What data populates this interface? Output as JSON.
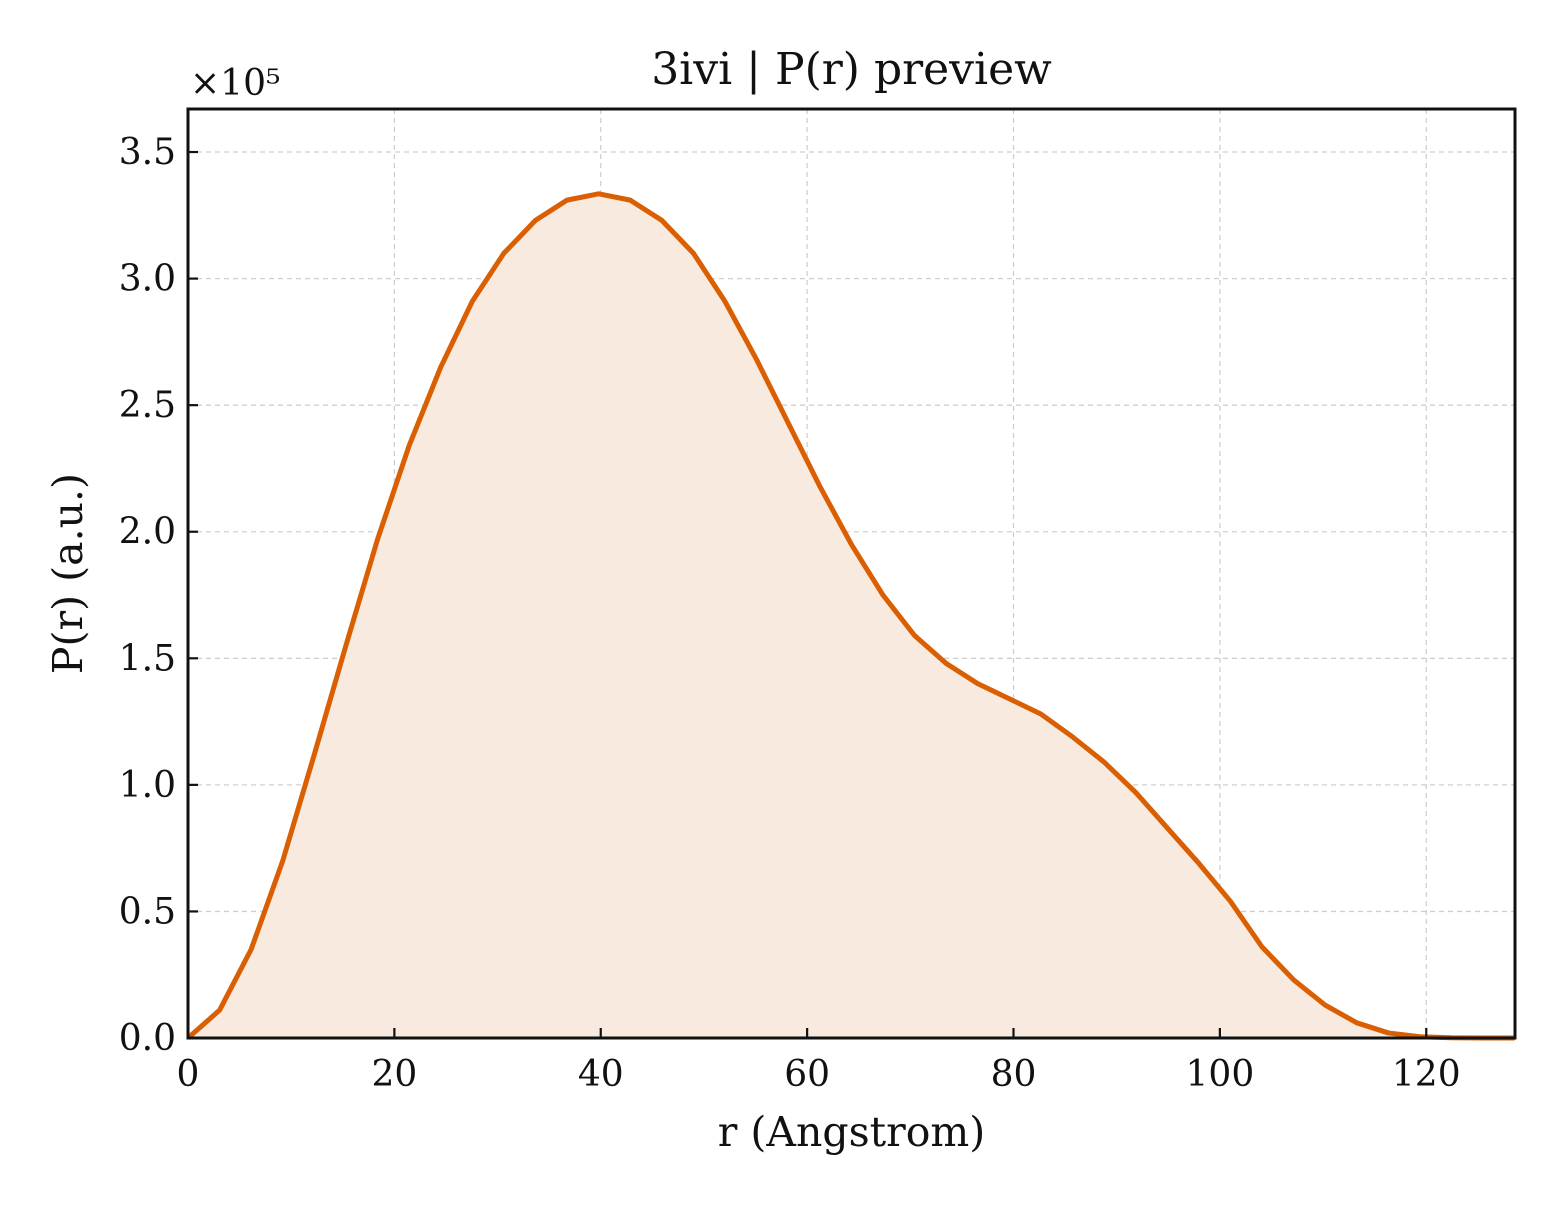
{
  "chart_data": {
    "type": "area",
    "title": "3ivi | P(r) preview",
    "xlabel": "r (Angstrom)",
    "ylabel": "P(r) (a.u.)",
    "y_offset_label": "×10⁵",
    "xlim": [
      0,
      128.6
    ],
    "ylim": [
      0,
      3.67
    ],
    "x_ticks": [
      0,
      20,
      40,
      60,
      80,
      100,
      120
    ],
    "x_tick_labels": [
      "0",
      "20",
      "40",
      "60",
      "80",
      "100",
      "120"
    ],
    "y_ticks": [
      0,
      0.5,
      1.0,
      1.5,
      2.0,
      2.5,
      3.0,
      3.5
    ],
    "y_tick_labels": [
      "0.0",
      "0.5",
      "1.0",
      "1.5",
      "2.0",
      "2.5",
      "3.0",
      "3.5"
    ],
    "grid": true,
    "series": [
      {
        "color": "#d95f02",
        "fill_color": "#f8eadf",
        "x": [
          0,
          3.06,
          6.12,
          9.18,
          12.24,
          15.3,
          18.37,
          21.43,
          24.49,
          27.55,
          30.61,
          33.67,
          36.73,
          39.8,
          42.86,
          45.92,
          48.98,
          52.04,
          55.1,
          58.16,
          61.22,
          64.29,
          67.35,
          70.41,
          73.47,
          76.53,
          79.59,
          82.65,
          85.71,
          88.78,
          91.84,
          94.9,
          97.96,
          101.02,
          104.08,
          107.14,
          110.2,
          113.27,
          116.33,
          119.39,
          122.45,
          125.51,
          128.57
        ],
        "y": [
          0,
          0.11,
          0.35,
          0.7,
          1.12,
          1.55,
          1.97,
          2.34,
          2.65,
          2.91,
          3.1,
          3.23,
          3.31,
          3.335,
          3.31,
          3.23,
          3.1,
          2.91,
          2.68,
          2.43,
          2.18,
          1.95,
          1.75,
          1.59,
          1.48,
          1.4,
          1.34,
          1.28,
          1.19,
          1.09,
          0.97,
          0.83,
          0.69,
          0.54,
          0.36,
          0.23,
          0.13,
          0.06,
          0.02,
          0.005,
          0.001,
          0,
          0
        ]
      }
    ]
  }
}
